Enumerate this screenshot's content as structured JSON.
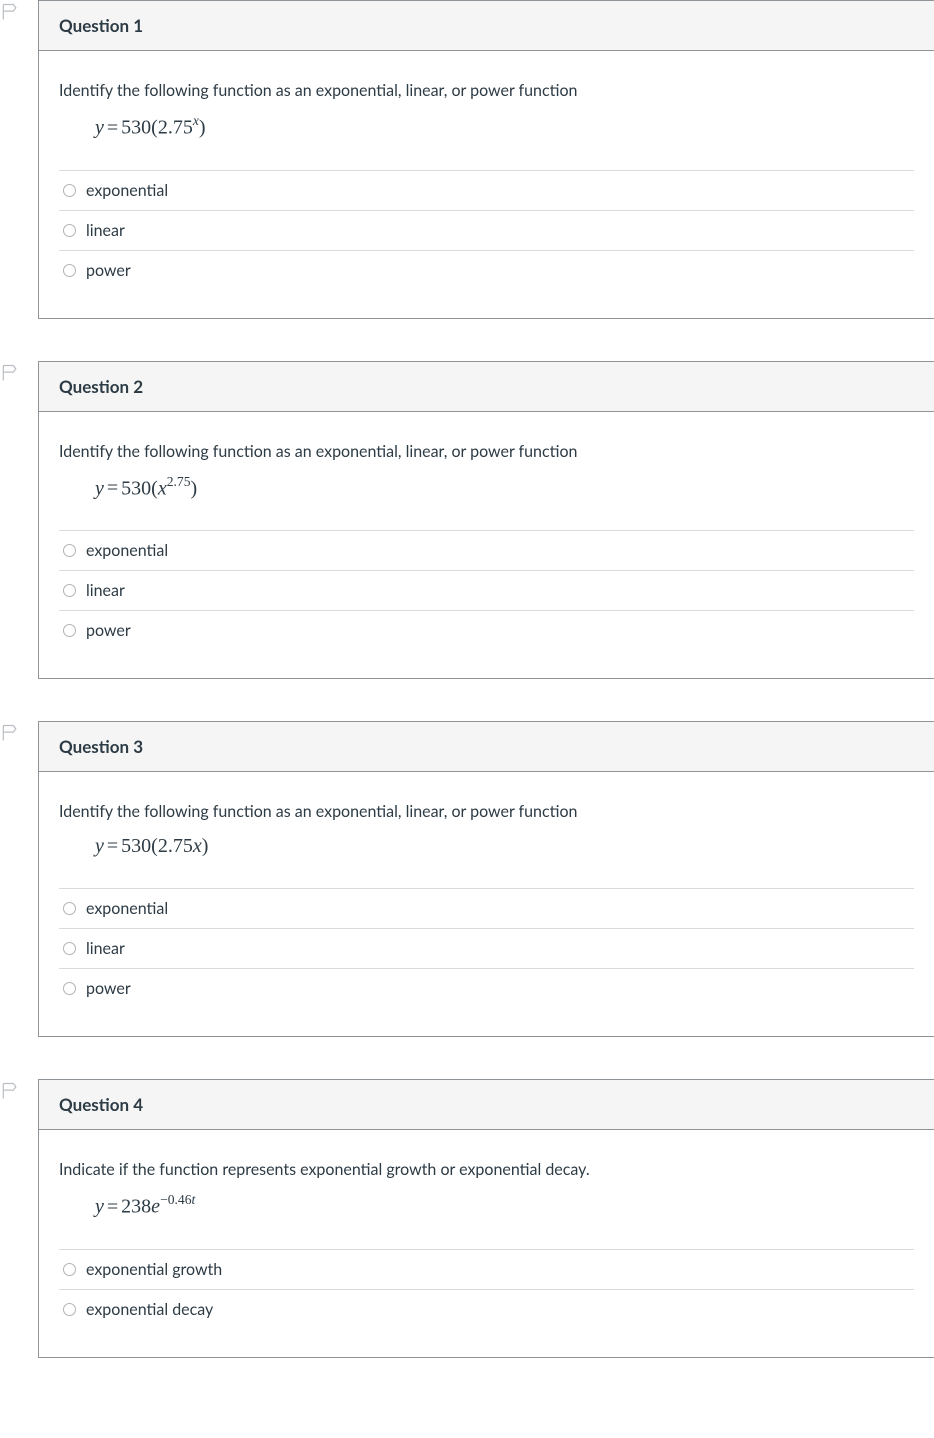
{
  "questions": [
    {
      "title": "Question 1",
      "prompt": "Identify the following function as an exponential, linear, or power function",
      "equation_html": "<span class='it'>y</span><span class='op'>=</span><span class='num'>530(2.75</span><sup><span class='it'>x</span></sup><span class='num'>)</span>",
      "options": [
        "exponential",
        "linear",
        "power"
      ]
    },
    {
      "title": "Question 2",
      "prompt": "Identify the following function as an exponential, linear, or power function",
      "equation_html": "<span class='it'>y</span><span class='op'>=</span><span class='num'>530(</span><span class='it'>x</span><sup>2.75</sup><span class='num'>)</span>",
      "options": [
        "exponential",
        "linear",
        "power"
      ]
    },
    {
      "title": "Question 3",
      "prompt": "Identify the following function as an exponential, linear, or power function",
      "equation_html": "<span class='it'>y</span><span class='op'>=</span><span class='num'>530(2.75</span><span class='it'>x</span><span class='num'>)</span>",
      "options": [
        "exponential",
        "linear",
        "power"
      ]
    },
    {
      "title": "Question 4",
      "prompt": "Indicate if the function represents exponential growth or exponential decay.",
      "equation_html": "<span class='it'>y</span><span class='op'>=</span><span class='num'>238</span><span class='it'>e</span><sup>&minus;0.46<span class='it'>t</span></sup>",
      "options": [
        "exponential growth",
        "exponential decay"
      ]
    }
  ],
  "colors": {
    "border": "#8e9498",
    "header_bg": "#f5f5f5",
    "text": "#2d3b45",
    "option_border": "#d9dcde",
    "flag_stroke": "#bbbfc3"
  }
}
